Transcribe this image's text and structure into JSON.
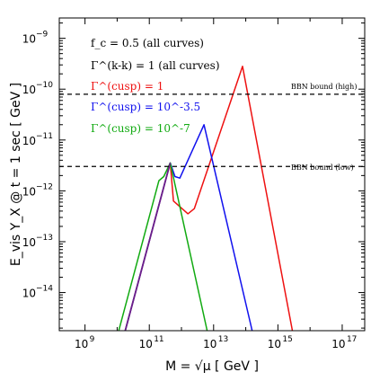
{
  "chart_data": {
    "type": "line",
    "xlabel": "M = √μ [ GeV ]",
    "ylabel": "E_vis Y_X @ t = 1 sec [ GeV ]",
    "x_scale": "log",
    "y_scale": "log",
    "xlim_log10": [
      8.2,
      17.7
    ],
    "ylim_log10": [
      -14.75,
      -8.6
    ],
    "x_tick_exponents": [
      9,
      11,
      13,
      15,
      17
    ],
    "y_tick_exponents": [
      -14,
      -13,
      -12,
      -11,
      -10,
      -9
    ],
    "grid": false,
    "annotations": {
      "fc": "f_c = 0.5 (all curves)",
      "gamma_kk": "Γ^(k-k) = 1 (all curves)",
      "gamma1": "Γ^(cusp) = 1",
      "gamma2": "Γ^(cusp) = 10^-3.5",
      "gamma3": "Γ^(cusp) = 10^-7"
    },
    "hlines": [
      {
        "label": "BBN bound (high)",
        "y_log10": -10.1
      },
      {
        "label": "BBN bound (low)",
        "y_log10": -11.52
      }
    ],
    "series": [
      {
        "name": "Γ(cusp) = 1",
        "color": "#ee1111",
        "points_log10": [
          [
            10.25,
            -14.75
          ],
          [
            11.65,
            -11.45
          ],
          [
            11.75,
            -12.2
          ],
          [
            12.2,
            -12.45
          ],
          [
            12.4,
            -12.35
          ],
          [
            13.9,
            -9.55
          ],
          [
            15.45,
            -14.75
          ]
        ]
      },
      {
        "name": "Γ(cusp) = 10^-3.5",
        "color": "#1111ee",
        "points_log10": [
          [
            10.25,
            -14.75
          ],
          [
            11.65,
            -11.45
          ],
          [
            11.8,
            -11.72
          ],
          [
            11.95,
            -11.75
          ],
          [
            12.7,
            -10.7
          ],
          [
            14.2,
            -14.75
          ]
        ]
      },
      {
        "name": "Γ(cusp) = 10^-7",
        "color": "#11aa11",
        "points_log10": [
          [
            10.05,
            -14.75
          ],
          [
            11.3,
            -11.8
          ],
          [
            11.45,
            -11.72
          ],
          [
            11.65,
            -11.45
          ],
          [
            12.8,
            -14.75
          ]
        ]
      }
    ],
    "overlap_color": "#6a1f8a"
  }
}
